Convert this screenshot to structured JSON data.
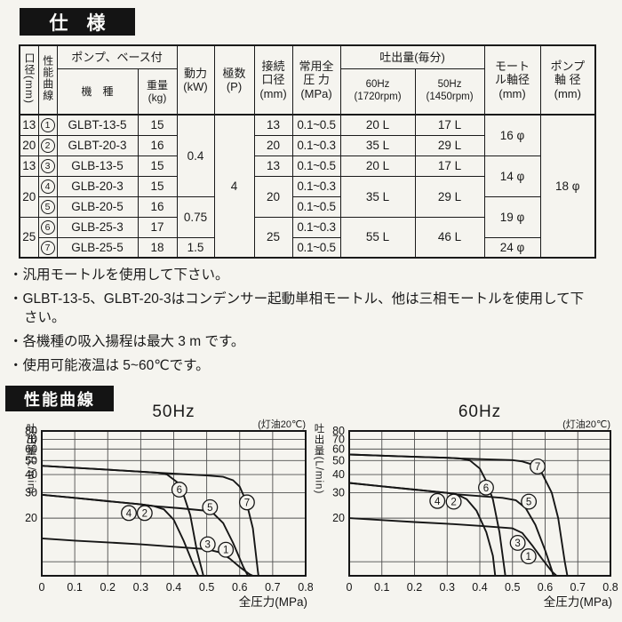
{
  "spec_title": "仕　様",
  "curves_title": "性能曲線",
  "spec_table": {
    "headers": {
      "bore": "口径(mm)",
      "curve": "性能曲線",
      "pump_group": "ポンプ、ベース付",
      "model": "機　種",
      "weight": "重量\n(kg)",
      "power": "動力\n(kW)",
      "poles": "極数\n(P)",
      "conn": "接続\n口径\n(mm)",
      "pressure": "常用全\n圧 力\n(MPa)",
      "flow_group": "吐出量(毎分)",
      "flow60": "60Hz\n(1720rpm)",
      "flow50": "50Hz\n(1450rpm)",
      "motor_shaft": "モート\nル軸径\n(mm)",
      "pump_shaft": "ポンプ\n軸 径\n(mm)"
    },
    "cells": {
      "bore": [
        "13",
        "20",
        "13",
        "20",
        "25"
      ],
      "curve": [
        "1",
        "2",
        "3",
        "4",
        "5",
        "6",
        "7"
      ],
      "model": [
        "GLBT-13-5",
        "GLBT-20-3",
        "GLB-13-5",
        "GLB-20-3",
        "GLB-20-5",
        "GLB-25-3",
        "GLB-25-5"
      ],
      "weight": [
        "15",
        "16",
        "15",
        "15",
        "16",
        "17",
        "18"
      ],
      "power": [
        "0.4",
        "0.75",
        "1.5"
      ],
      "poles": "4",
      "conn": [
        "13",
        "20",
        "13",
        "20",
        "25"
      ],
      "pressure": [
        "0.1~0.5",
        "0.1~0.3",
        "0.1~0.5",
        "0.1~0.3",
        "0.1~0.5",
        "0.1~0.3",
        "0.1~0.5"
      ],
      "flow60": [
        "20 L",
        "35 L",
        "20 L",
        "35 L",
        "55 L"
      ],
      "flow50": [
        "17 L",
        "29 L",
        "17 L",
        "29 L",
        "46 L"
      ],
      "motor_shaft": [
        "16 φ",
        "14 φ",
        "19 φ",
        "24 φ"
      ],
      "pump_shaft": "18 φ"
    }
  },
  "notes": [
    "・汎用モートルを使用して下さい。",
    "・GLBT-13-5、GLBT-20-3はコンデンサー起動単相モートル、他は三相モートルを使用して下さい。",
    "・各機種の吸入揚程は最大 3 m です。",
    "・使用可能液温は 5~60℃です。"
  ],
  "chart_data": [
    {
      "type": "line",
      "title": "50Hz",
      "annotation": "(灯油20℃)",
      "xlabel": "全圧力(MPa)",
      "ylabel": "吐出量(L/min)",
      "xlim": [
        0,
        0.8
      ],
      "ylim": [
        8,
        80
      ],
      "y_scale": "log",
      "grid": true,
      "x_tick_labels": [
        "0",
        "0.1",
        "0.2",
        "0.3",
        "0.4",
        "0.5",
        "0.6",
        "0.7",
        "0.8"
      ],
      "y_ticks": [
        20,
        30,
        40,
        50,
        60,
        70,
        80
      ],
      "series": [
        {
          "name": "6",
          "points": [
            [
              0,
              46
            ],
            [
              0.1,
              44.6
            ],
            [
              0.2,
              43.2
            ],
            [
              0.3,
              41.9
            ],
            [
              0.35,
              41.2
            ],
            [
              0.38,
              40
            ],
            [
              0.41,
              35.5
            ],
            [
              0.43,
              29
            ],
            [
              0.45,
              21
            ],
            [
              0.47,
              12
            ],
            [
              0.49,
              8
            ]
          ]
        },
        {
          "name": "7",
          "points": [
            [
              0,
              46
            ],
            [
              0.1,
              44.6
            ],
            [
              0.2,
              43.2
            ],
            [
              0.3,
              41.9
            ],
            [
              0.35,
              41.2
            ],
            [
              0.42,
              40.3
            ],
            [
              0.5,
              39.4
            ],
            [
              0.55,
              38.6
            ],
            [
              0.58,
              36.5
            ],
            [
              0.6,
              33
            ],
            [
              0.62,
              26
            ],
            [
              0.64,
              17
            ],
            [
              0.655,
              8.6
            ],
            [
              0.657,
              8
            ]
          ]
        },
        {
          "name": "4,2",
          "points": [
            [
              0,
              29
            ],
            [
              0.1,
              27.6
            ],
            [
              0.2,
              26.2
            ],
            [
              0.3,
              24.9
            ],
            [
              0.34,
              24.2
            ],
            [
              0.37,
              23
            ],
            [
              0.4,
              19.5
            ],
            [
              0.43,
              14
            ],
            [
              0.46,
              9.5
            ],
            [
              0.475,
              8
            ]
          ]
        },
        {
          "name": "5",
          "points": [
            [
              0,
              29
            ],
            [
              0.1,
              27.6
            ],
            [
              0.2,
              26.2
            ],
            [
              0.3,
              24.9
            ],
            [
              0.34,
              24.2
            ],
            [
              0.42,
              23.4
            ],
            [
              0.49,
              22.6
            ],
            [
              0.52,
              21.6
            ],
            [
              0.55,
              18.5
            ],
            [
              0.58,
              13.5
            ],
            [
              0.61,
              9.3
            ],
            [
              0.625,
              8
            ]
          ]
        },
        {
          "name": "3,1",
          "points": [
            [
              0,
              14.5
            ],
            [
              0.1,
              14
            ],
            [
              0.2,
              13.6
            ],
            [
              0.3,
              13.2
            ],
            [
              0.4,
              12.7
            ],
            [
              0.5,
              12.2
            ],
            [
              0.54,
              11.6
            ],
            [
              0.57,
              10.5
            ],
            [
              0.6,
              9.2
            ],
            [
              0.63,
              8.2
            ],
            [
              0.64,
              8
            ]
          ]
        }
      ],
      "curve_labels": [
        {
          "text": "6",
          "x": 0.417,
          "y": 31.5
        },
        {
          "text": "7",
          "x": 0.622,
          "y": 25.7
        },
        {
          "text": "4",
          "x": 0.264,
          "y": 21.7
        },
        {
          "text": "2",
          "x": 0.312,
          "y": 21.7
        },
        {
          "text": "5",
          "x": 0.51,
          "y": 23.8
        },
        {
          "text": "3",
          "x": 0.503,
          "y": 13.2
        },
        {
          "text": "1",
          "x": 0.558,
          "y": 12.1
        }
      ]
    },
    {
      "type": "line",
      "title": "60Hz",
      "annotation": "(灯油20℃)",
      "xlabel": "全圧力(MPa)",
      "ylabel": "吐出量(L/min)",
      "xlim": [
        0,
        0.8
      ],
      "ylim": [
        8,
        80
      ],
      "y_scale": "log",
      "grid": true,
      "x_tick_labels": [
        "0",
        "0.1",
        "0.2",
        "0.3",
        "0.4",
        "0.5",
        "0.6",
        "0.7",
        "0.8"
      ],
      "y_ticks": [
        20,
        30,
        40,
        50,
        60,
        70,
        80
      ],
      "series": [
        {
          "name": "6",
          "points": [
            [
              0,
              55
            ],
            [
              0.1,
              54
            ],
            [
              0.2,
              53
            ],
            [
              0.3,
              52.2
            ],
            [
              0.34,
              51.6
            ],
            [
              0.37,
              50
            ],
            [
              0.4,
              44
            ],
            [
              0.42,
              36
            ],
            [
              0.44,
              27
            ],
            [
              0.46,
              16
            ],
            [
              0.475,
              9
            ],
            [
              0.478,
              8
            ]
          ]
        },
        {
          "name": "7",
          "points": [
            [
              0,
              55
            ],
            [
              0.1,
              54
            ],
            [
              0.2,
              53
            ],
            [
              0.3,
              52.2
            ],
            [
              0.34,
              51.6
            ],
            [
              0.42,
              51
            ],
            [
              0.5,
              50.3
            ],
            [
              0.53,
              49.3
            ],
            [
              0.56,
              47
            ],
            [
              0.59,
              41
            ],
            [
              0.62,
              30
            ],
            [
              0.64,
              20
            ],
            [
              0.66,
              10
            ],
            [
              0.668,
              8
            ]
          ]
        },
        {
          "name": "4,2",
          "points": [
            [
              0,
              35
            ],
            [
              0.1,
              33.2
            ],
            [
              0.2,
              31.5
            ],
            [
              0.3,
              29.9
            ],
            [
              0.33,
              29.2
            ],
            [
              0.36,
              27
            ],
            [
              0.39,
              22.5
            ],
            [
              0.42,
              16
            ],
            [
              0.44,
              11
            ],
            [
              0.447,
              8
            ]
          ]
        },
        {
          "name": "5",
          "points": [
            [
              0,
              35
            ],
            [
              0.1,
              33.2
            ],
            [
              0.2,
              31.5
            ],
            [
              0.3,
              29.9
            ],
            [
              0.33,
              29.2
            ],
            [
              0.4,
              28.4
            ],
            [
              0.47,
              27.6
            ],
            [
              0.51,
              26.6
            ],
            [
              0.54,
              23.5
            ],
            [
              0.57,
              18
            ],
            [
              0.6,
              12
            ],
            [
              0.62,
              8.8
            ],
            [
              0.625,
              8
            ]
          ]
        },
        {
          "name": "3,1",
          "points": [
            [
              0,
              20
            ],
            [
              0.1,
              19.4
            ],
            [
              0.2,
              18.8
            ],
            [
              0.3,
              18.3
            ],
            [
              0.4,
              17.7
            ],
            [
              0.5,
              17
            ],
            [
              0.53,
              15.8
            ],
            [
              0.56,
              13
            ],
            [
              0.59,
              10.5
            ],
            [
              0.62,
              8.6
            ],
            [
              0.635,
              8
            ]
          ]
        }
      ],
      "curve_labels": [
        {
          "text": "6",
          "x": 0.419,
          "y": 32.5
        },
        {
          "text": "7",
          "x": 0.577,
          "y": 45.5
        },
        {
          "text": "4",
          "x": 0.27,
          "y": 26.3
        },
        {
          "text": "2",
          "x": 0.32,
          "y": 26
        },
        {
          "text": "5",
          "x": 0.55,
          "y": 26
        },
        {
          "text": "3",
          "x": 0.516,
          "y": 13.5
        },
        {
          "text": "1",
          "x": 0.549,
          "y": 10.9
        }
      ]
    }
  ]
}
